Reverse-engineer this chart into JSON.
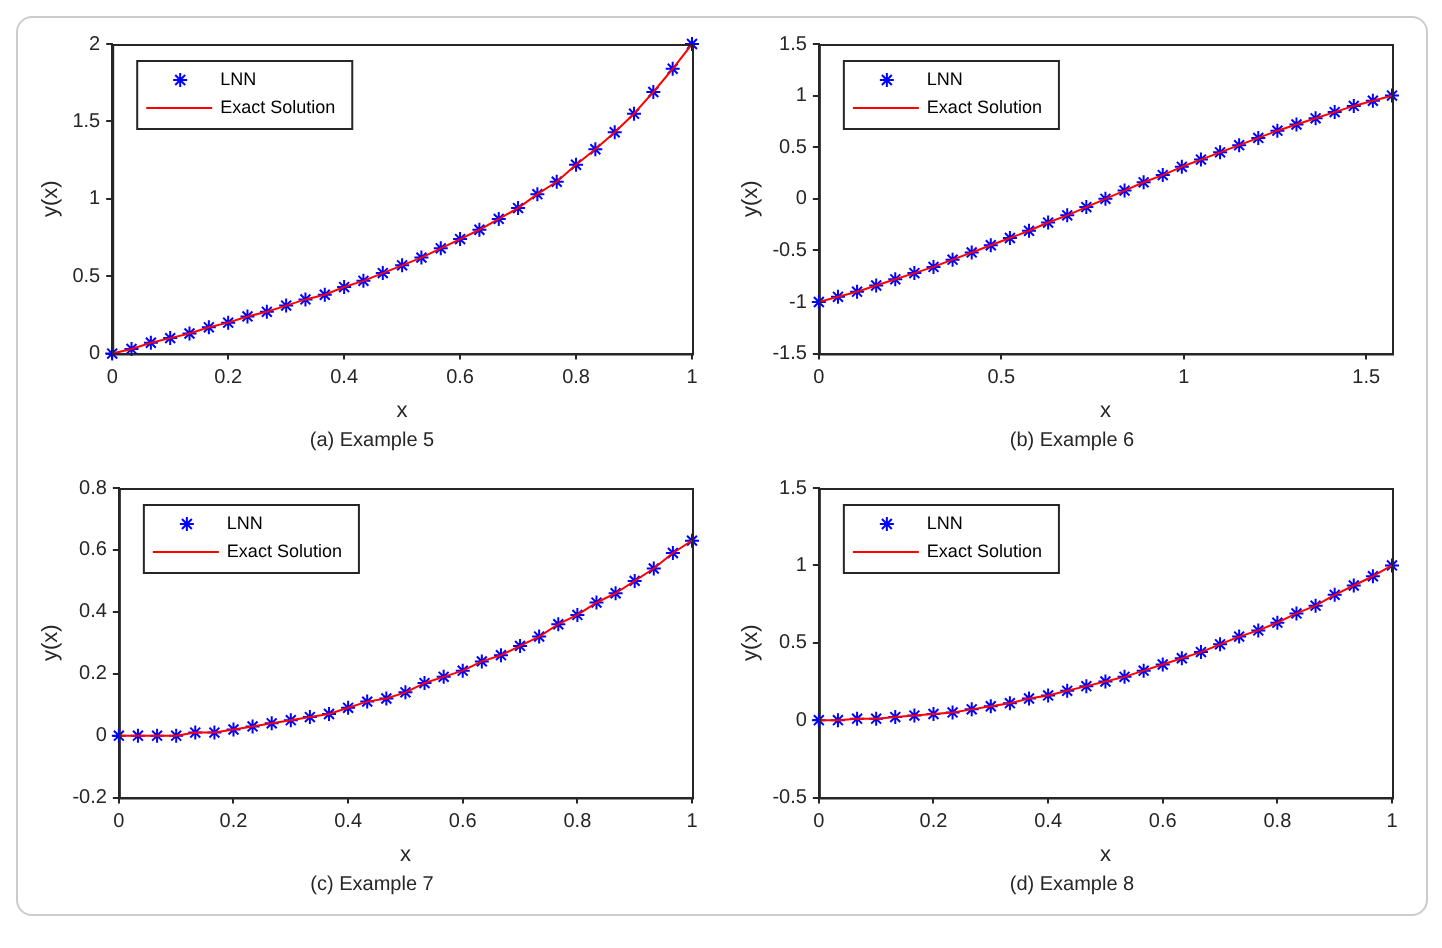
{
  "chart_data": [
    {
      "type": "line",
      "xlabel": "x",
      "ylabel": "y(x)",
      "annotations": [
        "(a) Example 5"
      ],
      "legend": "top left",
      "xlim": [
        0,
        1
      ],
      "xticks": [
        0,
        0.2,
        0.4,
        0.6,
        0.8,
        1
      ],
      "ylim": [
        0,
        2
      ],
      "yticks": [
        0,
        0.5,
        1,
        1.5,
        2
      ],
      "x": [
        0,
        0.0333,
        0.0667,
        0.1,
        0.1333,
        0.1667,
        0.2,
        0.2333,
        0.2667,
        0.3,
        0.3333,
        0.3667,
        0.4,
        0.4333,
        0.4667,
        0.5,
        0.5333,
        0.5667,
        0.6,
        0.6333,
        0.6667,
        0.7,
        0.7333,
        0.7667,
        0.8,
        0.8333,
        0.8667,
        0.9,
        0.9333,
        0.9667,
        1
      ],
      "series": [
        {
          "name": "LNN",
          "type": "scatter",
          "marker": "cross",
          "color": "#0000ff",
          "values": [
            0,
            0.03,
            0.07,
            0.1,
            0.13,
            0.17,
            0.2,
            0.24,
            0.27,
            0.31,
            0.35,
            0.38,
            0.43,
            0.47,
            0.52,
            0.57,
            0.62,
            0.68,
            0.74,
            0.8,
            0.87,
            0.94,
            1.03,
            1.11,
            1.22,
            1.32,
            1.43,
            1.55,
            1.69,
            1.84,
            2.0
          ]
        },
        {
          "name": "Exact Solution",
          "color": "#ff0000",
          "values": [
            0,
            0.03,
            0.07,
            0.1,
            0.13,
            0.17,
            0.2,
            0.24,
            0.27,
            0.31,
            0.35,
            0.38,
            0.43,
            0.47,
            0.52,
            0.57,
            0.62,
            0.68,
            0.74,
            0.8,
            0.87,
            0.94,
            1.03,
            1.11,
            1.22,
            1.32,
            1.43,
            1.55,
            1.69,
            1.84,
            2.0
          ]
        }
      ]
    },
    {
      "type": "line",
      "xlabel": "x",
      "ylabel": "y(x)",
      "annotations": [
        "(b) Example 6"
      ],
      "legend": "top left",
      "xlim": [
        0,
        1.5708
      ],
      "xticks": [
        0,
        0.5,
        1,
        1.5
      ],
      "ylim": [
        -1.5,
        1.5
      ],
      "yticks": [
        -1.5,
        -1,
        -0.5,
        0,
        0.5,
        1,
        1.5
      ],
      "x": [
        0,
        0.0524,
        0.1047,
        0.1571,
        0.2094,
        0.2618,
        0.3142,
        0.3665,
        0.4189,
        0.4712,
        0.5236,
        0.576,
        0.6283,
        0.6807,
        0.733,
        0.7854,
        0.8378,
        0.8901,
        0.9425,
        0.9948,
        1.0472,
        1.0996,
        1.1519,
        1.2043,
        1.2566,
        1.309,
        1.3614,
        1.4137,
        1.4661,
        1.5184,
        1.5708
      ],
      "series": [
        {
          "name": "LNN",
          "type": "scatter",
          "marker": "cross",
          "color": "#0000ff",
          "values": [
            -1,
            -0.95,
            -0.9,
            -0.84,
            -0.78,
            -0.72,
            -0.66,
            -0.59,
            -0.52,
            -0.45,
            -0.38,
            -0.31,
            -0.23,
            -0.16,
            -0.08,
            0,
            0.08,
            0.16,
            0.23,
            0.31,
            0.38,
            0.45,
            0.52,
            0.59,
            0.66,
            0.72,
            0.78,
            0.84,
            0.9,
            0.95,
            1
          ]
        },
        {
          "name": "Exact Solution",
          "color": "#ff0000",
          "values": [
            -1,
            -0.95,
            -0.9,
            -0.84,
            -0.78,
            -0.72,
            -0.66,
            -0.59,
            -0.52,
            -0.45,
            -0.38,
            -0.31,
            -0.23,
            -0.16,
            -0.08,
            0,
            0.08,
            0.16,
            0.23,
            0.31,
            0.38,
            0.45,
            0.52,
            0.59,
            0.66,
            0.72,
            0.78,
            0.84,
            0.9,
            0.95,
            1
          ]
        }
      ]
    },
    {
      "type": "line",
      "xlabel": "x",
      "ylabel": "y(x)",
      "annotations": [
        "(c) Example 7"
      ],
      "legend": "top left",
      "xlim": [
        0,
        1
      ],
      "xticks": [
        0,
        0.2,
        0.4,
        0.6,
        0.8,
        1
      ],
      "ylim": [
        -0.2,
        0.8
      ],
      "yticks": [
        -0.2,
        0,
        0.2,
        0.4,
        0.6,
        0.8
      ],
      "x": [
        0,
        0.0333,
        0.0667,
        0.1,
        0.1333,
        0.1667,
        0.2,
        0.2333,
        0.2667,
        0.3,
        0.3333,
        0.3667,
        0.4,
        0.4333,
        0.4667,
        0.5,
        0.5333,
        0.5667,
        0.6,
        0.6333,
        0.6667,
        0.7,
        0.7333,
        0.7667,
        0.8,
        0.8333,
        0.8667,
        0.9,
        0.9333,
        0.9667,
        1
      ],
      "series": [
        {
          "name": "LNN",
          "type": "scatter",
          "marker": "cross",
          "color": "#0000ff",
          "values": [
            0,
            0,
            0,
            0,
            0.01,
            0.01,
            0.02,
            0.03,
            0.04,
            0.05,
            0.06,
            0.07,
            0.09,
            0.11,
            0.12,
            0.14,
            0.17,
            0.19,
            0.21,
            0.24,
            0.26,
            0.29,
            0.32,
            0.36,
            0.39,
            0.43,
            0.46,
            0.5,
            0.54,
            0.59,
            0.63
          ]
        },
        {
          "name": "Exact Solution",
          "color": "#ff0000",
          "values": [
            0,
            0,
            0,
            0,
            0.01,
            0.01,
            0.02,
            0.03,
            0.04,
            0.05,
            0.06,
            0.07,
            0.09,
            0.11,
            0.12,
            0.14,
            0.17,
            0.19,
            0.21,
            0.24,
            0.26,
            0.29,
            0.32,
            0.36,
            0.39,
            0.43,
            0.46,
            0.5,
            0.54,
            0.59,
            0.63
          ]
        }
      ]
    },
    {
      "type": "line",
      "xlabel": "x",
      "ylabel": "y(x)",
      "annotations": [
        "(d) Example 8"
      ],
      "legend": "top left",
      "xlim": [
        0,
        1
      ],
      "xticks": [
        0,
        0.2,
        0.4,
        0.6,
        0.8,
        1
      ],
      "ylim": [
        -0.5,
        1.5
      ],
      "yticks": [
        -0.5,
        0,
        0.5,
        1,
        1.5
      ],
      "x": [
        0,
        0.0333,
        0.0667,
        0.1,
        0.1333,
        0.1667,
        0.2,
        0.2333,
        0.2667,
        0.3,
        0.3333,
        0.3667,
        0.4,
        0.4333,
        0.4667,
        0.5,
        0.5333,
        0.5667,
        0.6,
        0.6333,
        0.6667,
        0.7,
        0.7333,
        0.7667,
        0.8,
        0.8333,
        0.8667,
        0.9,
        0.9333,
        0.9667,
        1
      ],
      "series": [
        {
          "name": "LNN",
          "type": "scatter",
          "marker": "cross",
          "color": "#0000ff",
          "values": [
            0,
            0,
            0.01,
            0.01,
            0.02,
            0.03,
            0.04,
            0.05,
            0.07,
            0.09,
            0.11,
            0.14,
            0.16,
            0.19,
            0.22,
            0.25,
            0.28,
            0.32,
            0.36,
            0.4,
            0.44,
            0.49,
            0.54,
            0.58,
            0.63,
            0.69,
            0.74,
            0.81,
            0.87,
            0.93,
            1.0
          ]
        },
        {
          "name": "Exact Solution",
          "color": "#ff0000",
          "values": [
            0,
            0,
            0.01,
            0.01,
            0.02,
            0.03,
            0.04,
            0.05,
            0.07,
            0.09,
            0.11,
            0.14,
            0.16,
            0.19,
            0.22,
            0.25,
            0.28,
            0.32,
            0.36,
            0.4,
            0.44,
            0.49,
            0.54,
            0.58,
            0.63,
            0.69,
            0.74,
            0.81,
            0.87,
            0.93,
            1.0
          ]
        }
      ]
    }
  ]
}
